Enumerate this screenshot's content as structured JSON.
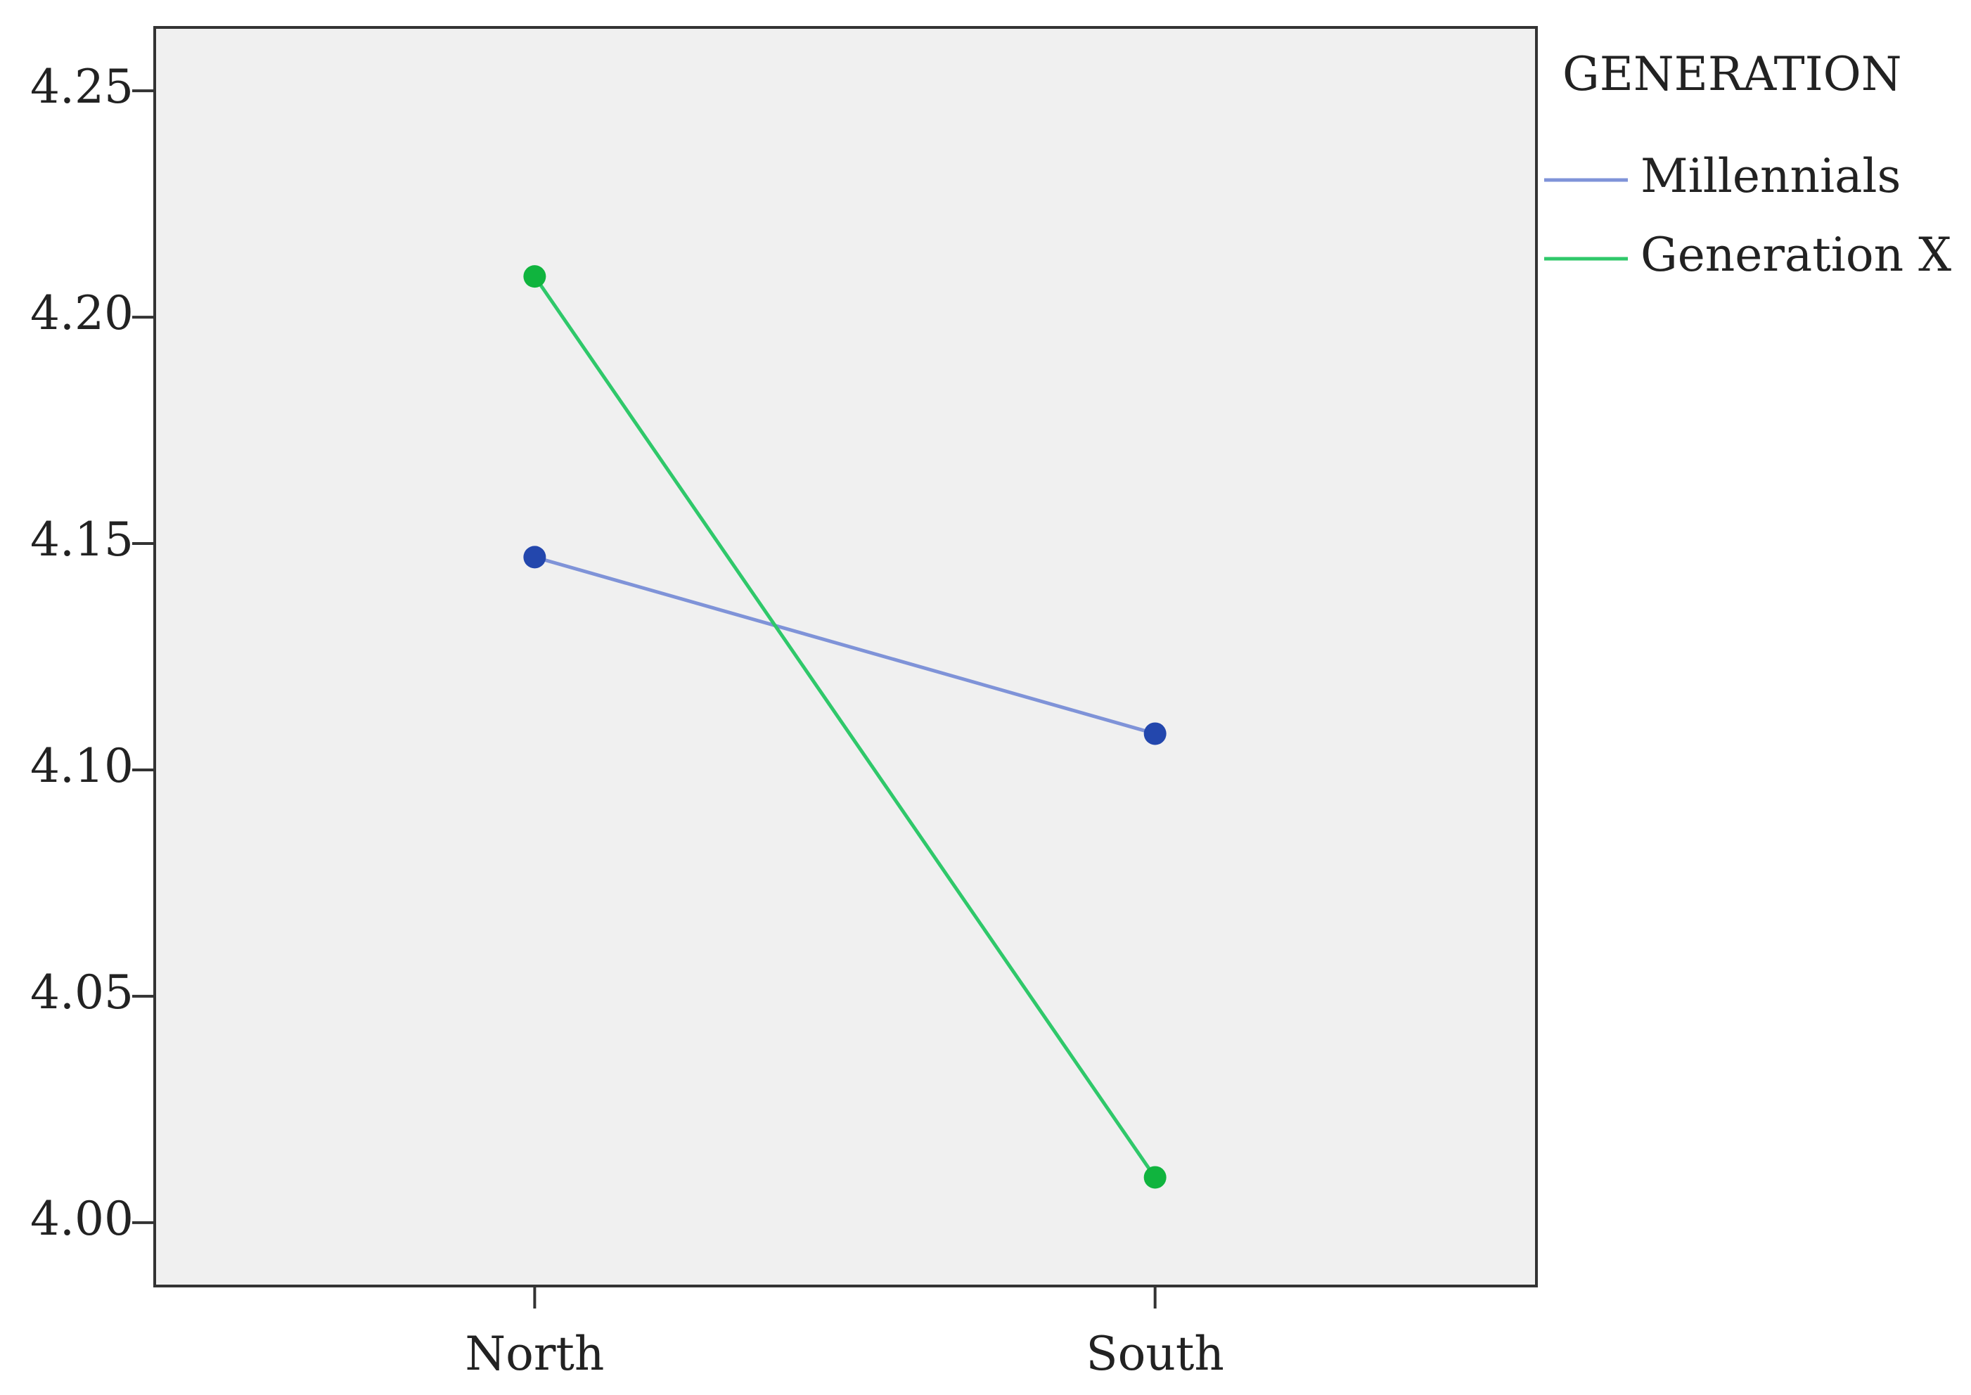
{
  "chart_data": {
    "type": "line",
    "categories": [
      "North",
      "South"
    ],
    "series": [
      {
        "name": "Millennials",
        "color": "#7f93d8",
        "marker_color": "#2347ad",
        "values": [
          4.147,
          4.108
        ]
      },
      {
        "name": "Generation X",
        "color": "#2fc86a",
        "marker_color": "#10b43e",
        "values": [
          4.209,
          4.01
        ]
      }
    ],
    "legend_title": "GENERATION",
    "legend": "right",
    "background": "#f0f0f0",
    "ylim": [
      3.986,
      4.264
    ],
    "yticks": [
      {
        "value": 4,
        "label": "4.00"
      },
      4.05,
      {
        "value": 4.1,
        "label": "4.10"
      },
      4.15,
      {
        "value": 4.2,
        "label": "4.20"
      },
      4.25
    ],
    "grid": false
  }
}
